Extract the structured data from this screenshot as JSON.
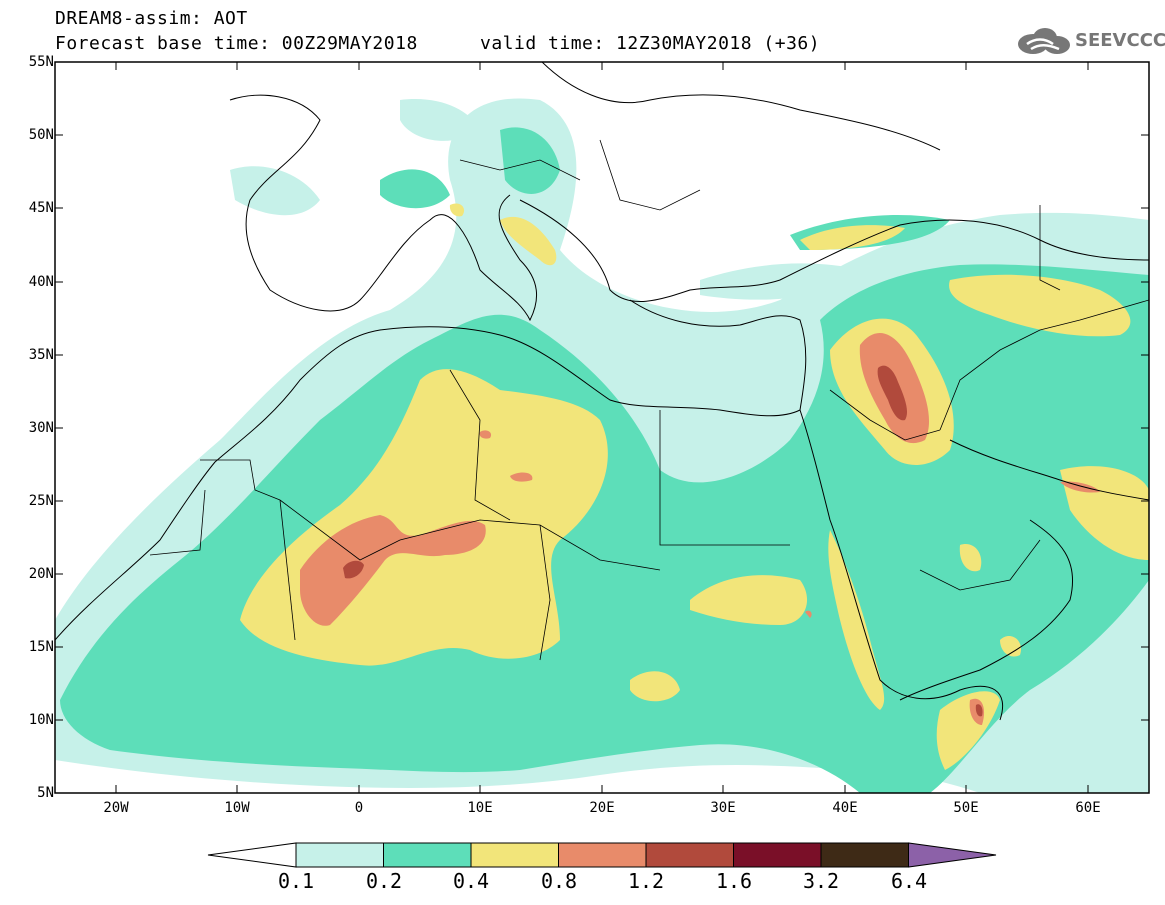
{
  "header": {
    "title": "DREAM8-assim: AOT",
    "base_time": "Forecast base time: 00Z29MAY2018",
    "valid_time": "valid time: 12Z30MAY2018 (+36)",
    "logo_text": "SEEVCCC"
  },
  "axes": {
    "lat_labels": [
      "55N",
      "50N",
      "45N",
      "40N",
      "35N",
      "30N",
      "25N",
      "20N",
      "15N",
      "10N",
      "5N"
    ],
    "lon_labels": [
      "20W",
      "10W",
      "0",
      "10E",
      "20E",
      "30E",
      "40E",
      "50E",
      "60E"
    ]
  },
  "colorbar": {
    "labels": [
      "0.1",
      "0.2",
      "0.4",
      "0.8",
      "1.2",
      "1.6",
      "3.2",
      "6.4"
    ],
    "colors": [
      "#c6f1e9",
      "#5ddeb9",
      "#f2e57a",
      "#e88b6a",
      "#b14a3c",
      "#7a0f28",
      "#3e2a16",
      "#8c61a8"
    ]
  },
  "legend_colors": {
    "low": "#c6f1e9",
    "mid": "#5ddeb9",
    "high": "#f2e57a",
    "very_high": "#e88b6a",
    "extreme": "#b14a3c"
  }
}
